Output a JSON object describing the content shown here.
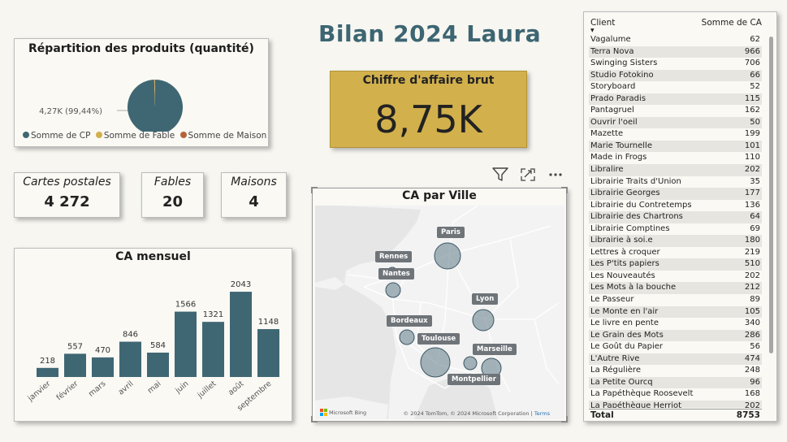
{
  "title": "Bilan 2024 Laura",
  "pie": {
    "title": "Répartition des produits (quantité)",
    "label": "4,27K (99,44%)",
    "legend": [
      {
        "name": "Somme de CP",
        "color": "#3f6773"
      },
      {
        "name": "Somme de Fable",
        "color": "#d2b04c"
      },
      {
        "name": "Somme de Maison",
        "color": "#b5643a"
      }
    ]
  },
  "ca_card": {
    "label": "Chiffre d'affaire brut",
    "value": "8,75K"
  },
  "kpis": {
    "cp": {
      "label": "Cartes postales",
      "value": "4 272"
    },
    "fables": {
      "label": "Fables",
      "value": "20"
    },
    "maisons": {
      "label": "Maisons",
      "value": "4"
    }
  },
  "chart_data": [
    {
      "type": "pie",
      "title": "Répartition des produits (quantité)",
      "categories": [
        "Somme de CP",
        "Somme de Fable",
        "Somme de Maison"
      ],
      "values": [
        4272,
        20,
        4
      ],
      "legend_position": "bottom"
    },
    {
      "type": "bar",
      "title": "CA mensuel",
      "categories": [
        "janvier",
        "février",
        "mars",
        "avril",
        "mai",
        "juin",
        "juillet",
        "août",
        "septembre"
      ],
      "values": [
        218,
        557,
        470,
        846,
        584,
        1566,
        1321,
        2043,
        1148
      ],
      "ylim": [
        0,
        2200
      ],
      "color": "#3f6773",
      "grid": false
    }
  ],
  "map": {
    "title": "CA par Ville",
    "cities": [
      "Paris",
      "Rennes",
      "Nantes",
      "Lyon",
      "Bordeaux",
      "Toulouse",
      "Marseille",
      "Montpellier"
    ],
    "brand": "Microsoft Bing",
    "credit": "© 2024 TomTom, © 2024 Microsoft Corporation",
    "terms": "Terms"
  },
  "toolbar": {
    "filter_icon": "filter-icon",
    "focus_icon": "focus-mode-icon",
    "more_icon": "more-options-icon"
  },
  "table": {
    "headers": [
      "Client",
      "Somme de CA"
    ],
    "rows": [
      [
        "Vagalume",
        "62"
      ],
      [
        "Terra Nova",
        "966"
      ],
      [
        "Swinging Sisters",
        "706"
      ],
      [
        "Studio Fotokino",
        "66"
      ],
      [
        "Storyboard",
        "52"
      ],
      [
        "Prado Paradis",
        "115"
      ],
      [
        "Pantagruel",
        "162"
      ],
      [
        "Ouvrir l'oeil",
        "50"
      ],
      [
        "Mazette",
        "199"
      ],
      [
        "Marie Tournelle",
        "101"
      ],
      [
        "Made in Frogs",
        "110"
      ],
      [
        "Libralire",
        "202"
      ],
      [
        "Librairie Traits d'Union",
        "35"
      ],
      [
        "Librairie Georges",
        "177"
      ],
      [
        "Librairie du Contretemps",
        "136"
      ],
      [
        "Librairie des Chartrons",
        "64"
      ],
      [
        "Librairie Comptines",
        "69"
      ],
      [
        "Librairie à soi.e",
        "180"
      ],
      [
        "Lettres à croquer",
        "219"
      ],
      [
        "Les P'tits papiers",
        "510"
      ],
      [
        "Les Nouveautés",
        "202"
      ],
      [
        "Les Mots à la bouche",
        "212"
      ],
      [
        "Le Passeur",
        "89"
      ],
      [
        "Le Monte en l'air",
        "105"
      ],
      [
        "Le livre en pente",
        "340"
      ],
      [
        "Le Grain des Mots",
        "286"
      ],
      [
        "Le Goût du Papier",
        "56"
      ],
      [
        "L'Autre Rive",
        "474"
      ],
      [
        "La Régulière",
        "248"
      ],
      [
        "La Petite Ourcq",
        "96"
      ],
      [
        "La Papéthèque Roosevelt",
        "168"
      ],
      [
        "La Papéthèque Herriot",
        "202"
      ]
    ],
    "total_label": "Total",
    "total_value": "8753"
  }
}
